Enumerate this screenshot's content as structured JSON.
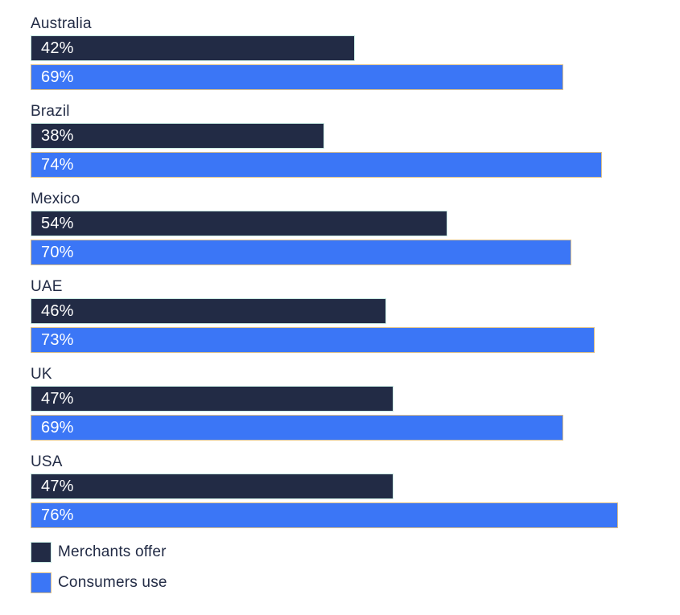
{
  "chart_data": {
    "type": "bar",
    "orientation": "horizontal",
    "categories": [
      "Australia",
      "Brazil",
      "Mexico",
      "UAE",
      "UK",
      "USA"
    ],
    "series": [
      {
        "name": "Merchants offer",
        "values": [
          42,
          38,
          54,
          46,
          47,
          47
        ],
        "color": "#222B45",
        "border_color": "#C7E8E1"
      },
      {
        "name": "Consumers use",
        "values": [
          69,
          74,
          70,
          73,
          69,
          76
        ],
        "color": "#3B76F6",
        "border_color": "#DEC189"
      }
    ],
    "value_suffix": "%",
    "value_label_color": "#FFFFFF",
    "value_labels_position": "inside-start",
    "xlim": [
      0,
      100
    ],
    "grid": false,
    "legend_position": "bottom-left"
  },
  "colors": {
    "background": "#FFFFFF",
    "label_text": "#222B45"
  }
}
